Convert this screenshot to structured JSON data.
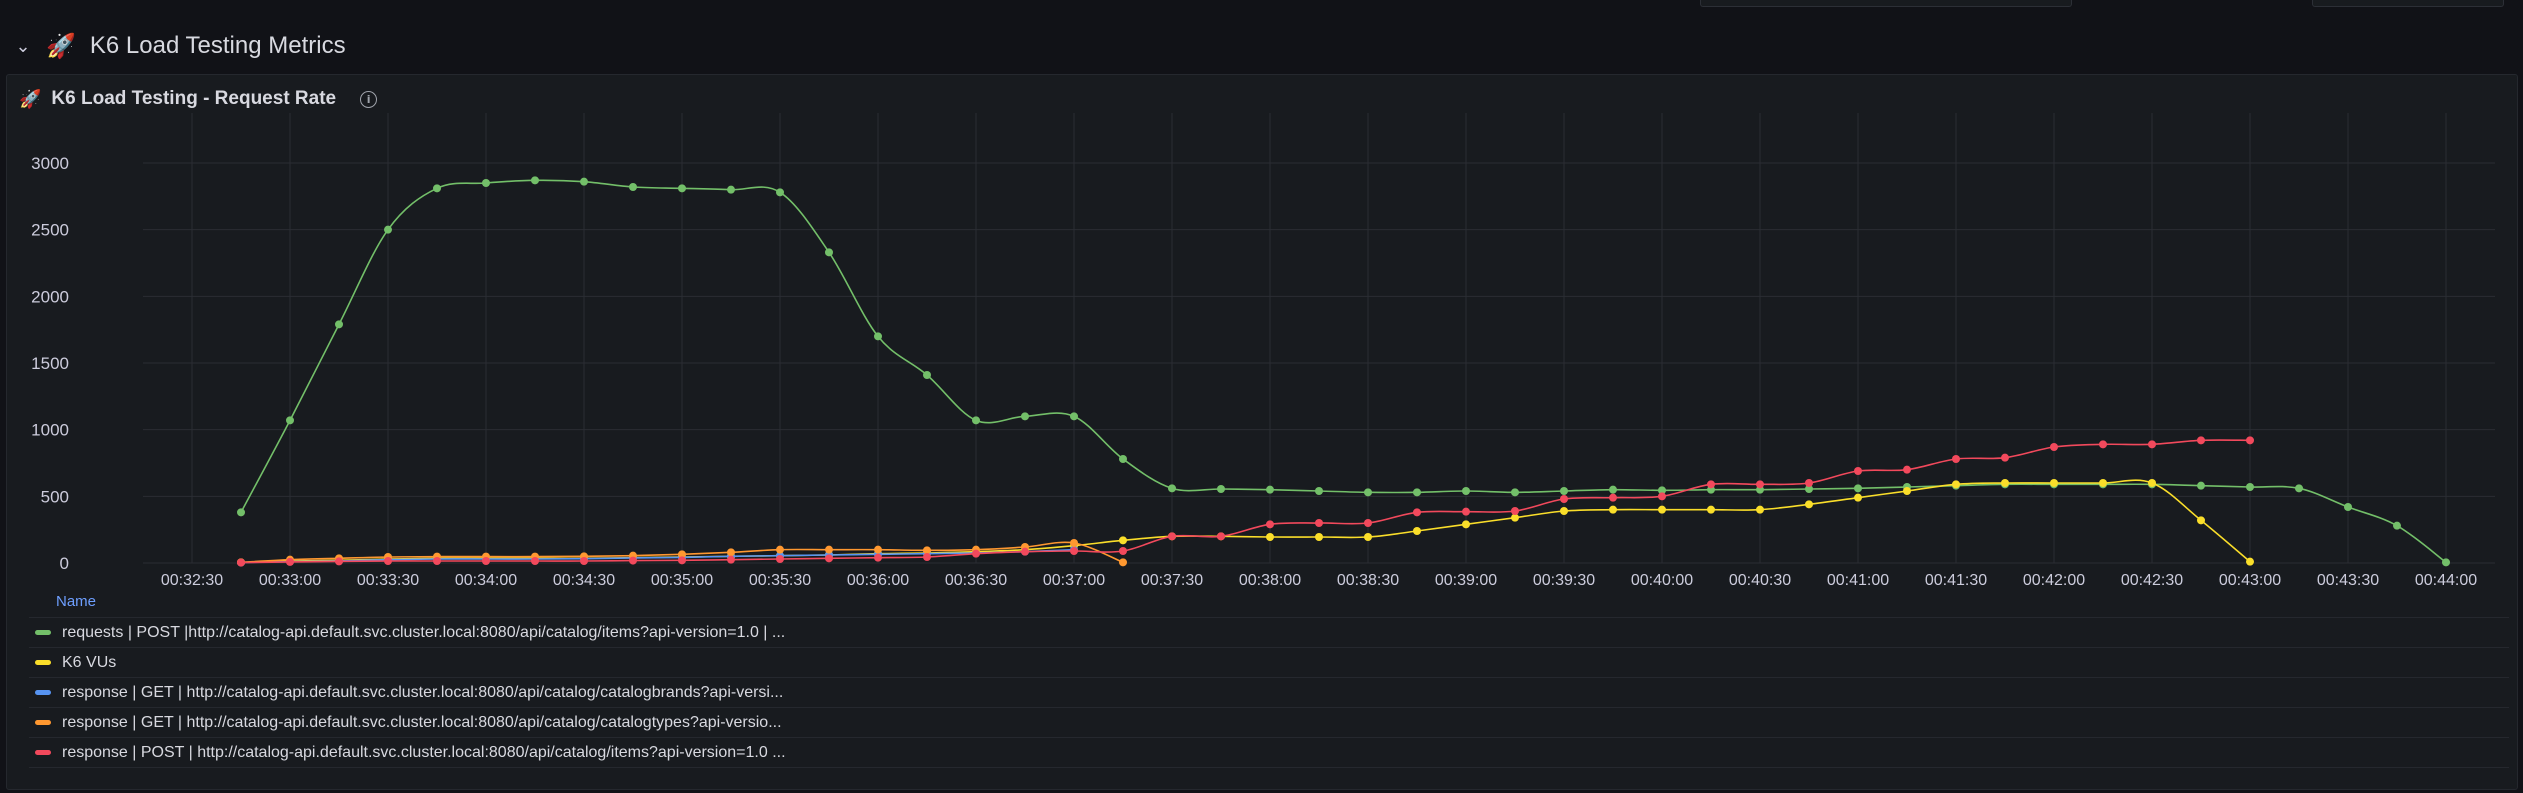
{
  "row": {
    "title": "K6 Load Testing Metrics",
    "chevron_icon": "chevron-down-icon",
    "title_icon": "rocket-icon"
  },
  "panel": {
    "title": "K6 Load Testing - Request Rate",
    "title_icon": "rocket-icon",
    "info_icon": "info-icon"
  },
  "legend": {
    "column_header": "Name",
    "items": [
      {
        "label": "requests | POST |http://catalog-api.default.svc.cluster.local:8080/api/catalog/items?api-version=1.0 | ...",
        "color": "#73bf69"
      },
      {
        "label": "K6 VUs",
        "color": "#fade2a"
      },
      {
        "label": "response | GET | http://catalog-api.default.svc.cluster.local:8080/api/catalog/catalogbrands?api-versi...",
        "color": "#5794f2"
      },
      {
        "label": "response | GET | http://catalog-api.default.svc.cluster.local:8080/api/catalog/catalogtypes?api-versio...",
        "color": "#ff9830"
      },
      {
        "label": "response | POST | http://catalog-api.default.svc.cluster.local:8080/api/catalog/items?api-version=1.0 ...",
        "color": "#f2495c"
      }
    ]
  },
  "chart_data": {
    "type": "line",
    "legend_placement": "bottom",
    "grid": true,
    "xlim": [
      "00:32:15",
      "00:44:15"
    ],
    "ylim": [
      0,
      3000
    ],
    "x_ticks": [
      "00:32:30",
      "00:33:00",
      "00:33:30",
      "00:34:00",
      "00:34:30",
      "00:35:00",
      "00:35:30",
      "00:36:00",
      "00:36:30",
      "00:37:00",
      "00:37:30",
      "00:38:00",
      "00:38:30",
      "00:39:00",
      "00:39:30",
      "00:40:00",
      "00:40:30",
      "00:41:00",
      "00:41:30",
      "00:42:00",
      "00:42:30",
      "00:43:00",
      "00:43:30",
      "00:44:00"
    ],
    "y_ticks": [
      0,
      500,
      1000,
      1500,
      2000,
      2500,
      3000
    ],
    "series": [
      {
        "name": "requests | POST |http://catalog-api.default.svc.cluster.local:8080/api/catalog/items?api-version=1.0 | ...",
        "color": "#73bf69",
        "points": [
          [
            "00:32:45",
            380
          ],
          [
            "00:33:00",
            1070
          ],
          [
            "00:33:15",
            1790
          ],
          [
            "00:33:30",
            2500
          ],
          [
            "00:33:45",
            2810
          ],
          [
            "00:34:00",
            2850
          ],
          [
            "00:34:15",
            2870
          ],
          [
            "00:34:30",
            2860
          ],
          [
            "00:34:45",
            2820
          ],
          [
            "00:35:00",
            2810
          ],
          [
            "00:35:15",
            2800
          ],
          [
            "00:35:30",
            2780
          ],
          [
            "00:35:45",
            2330
          ],
          [
            "00:36:00",
            1700
          ],
          [
            "00:36:15",
            1410
          ],
          [
            "00:36:30",
            1070
          ],
          [
            "00:36:45",
            1100
          ],
          [
            "00:37:00",
            1100
          ],
          [
            "00:37:15",
            780
          ],
          [
            "00:37:30",
            560
          ],
          [
            "00:37:45",
            555
          ],
          [
            "00:38:00",
            550
          ],
          [
            "00:38:15",
            540
          ],
          [
            "00:38:30",
            530
          ],
          [
            "00:38:45",
            530
          ],
          [
            "00:39:00",
            540
          ],
          [
            "00:39:15",
            530
          ],
          [
            "00:39:30",
            540
          ],
          [
            "00:39:45",
            550
          ],
          [
            "00:40:00",
            545
          ],
          [
            "00:40:15",
            550
          ],
          [
            "00:40:30",
            550
          ],
          [
            "00:40:45",
            555
          ],
          [
            "00:41:00",
            560
          ],
          [
            "00:41:15",
            570
          ],
          [
            "00:41:30",
            580
          ],
          [
            "00:41:45",
            590
          ],
          [
            "00:42:00",
            590
          ],
          [
            "00:42:15",
            590
          ],
          [
            "00:42:30",
            590
          ],
          [
            "00:42:45",
            580
          ],
          [
            "00:43:00",
            570
          ],
          [
            "00:43:15",
            560
          ],
          [
            "00:43:30",
            420
          ],
          [
            "00:43:45",
            280
          ],
          [
            "00:44:00",
            5
          ]
        ]
      },
      {
        "name": "K6 VUs",
        "color": "#fade2a",
        "points": [
          [
            "00:32:45",
            5
          ],
          [
            "00:33:00",
            15
          ],
          [
            "00:33:15",
            20
          ],
          [
            "00:33:30",
            30
          ],
          [
            "00:33:45",
            35
          ],
          [
            "00:34:00",
            35
          ],
          [
            "00:34:15",
            35
          ],
          [
            "00:34:30",
            35
          ],
          [
            "00:34:45",
            40
          ],
          [
            "00:35:00",
            45
          ],
          [
            "00:35:15",
            50
          ],
          [
            "00:35:30",
            55
          ],
          [
            "00:35:45",
            60
          ],
          [
            "00:36:00",
            70
          ],
          [
            "00:36:15",
            75
          ],
          [
            "00:36:30",
            85
          ],
          [
            "00:36:45",
            100
          ],
          [
            "00:37:00",
            130
          ],
          [
            "00:37:15",
            170
          ],
          [
            "00:37:30",
            200
          ],
          [
            "00:37:45",
            200
          ],
          [
            "00:38:00",
            195
          ],
          [
            "00:38:15",
            195
          ],
          [
            "00:38:30",
            195
          ],
          [
            "00:38:45",
            240
          ],
          [
            "00:39:00",
            290
          ],
          [
            "00:39:15",
            340
          ],
          [
            "00:39:30",
            390
          ],
          [
            "00:39:45",
            400
          ],
          [
            "00:40:00",
            400
          ],
          [
            "00:40:15",
            400
          ],
          [
            "00:40:30",
            400
          ],
          [
            "00:40:45",
            440
          ],
          [
            "00:41:00",
            490
          ],
          [
            "00:41:15",
            540
          ],
          [
            "00:41:30",
            590
          ],
          [
            "00:41:45",
            600
          ],
          [
            "00:42:00",
            600
          ],
          [
            "00:42:15",
            600
          ],
          [
            "00:42:30",
            600
          ],
          [
            "00:42:45",
            320
          ],
          [
            "00:43:00",
            10
          ]
        ]
      },
      {
        "name": "response | GET | http://catalog-api.default.svc.cluster.local:8080/api/catalog/catalogbrands?api-versi...",
        "color": "#5794f2",
        "points": [
          [
            "00:32:45",
            3
          ],
          [
            "00:33:00",
            10
          ],
          [
            "00:33:15",
            15
          ],
          [
            "00:33:30",
            25
          ],
          [
            "00:33:45",
            30
          ],
          [
            "00:34:00",
            30
          ],
          [
            "00:34:15",
            30
          ],
          [
            "00:34:30",
            32
          ],
          [
            "00:34:45",
            38
          ],
          [
            "00:35:00",
            42
          ],
          [
            "00:35:15",
            50
          ],
          [
            "00:35:30",
            55
          ],
          [
            "00:35:45",
            60
          ],
          [
            "00:36:00",
            65
          ],
          [
            "00:36:15",
            70
          ],
          [
            "00:36:30",
            75
          ],
          [
            "00:36:45",
            85
          ],
          [
            "00:37:00",
            100
          ]
        ]
      },
      {
        "name": "response | GET | http://catalog-api.default.svc.cluster.local:8080/api/catalog/catalogtypes?api-versio...",
        "color": "#ff9830",
        "points": [
          [
            "00:32:45",
            5
          ],
          [
            "00:33:00",
            25
          ],
          [
            "00:33:15",
            35
          ],
          [
            "00:33:30",
            45
          ],
          [
            "00:33:45",
            48
          ],
          [
            "00:34:00",
            48
          ],
          [
            "00:34:15",
            48
          ],
          [
            "00:34:30",
            50
          ],
          [
            "00:34:45",
            55
          ],
          [
            "00:35:00",
            65
          ],
          [
            "00:35:15",
            80
          ],
          [
            "00:35:30",
            100
          ],
          [
            "00:35:45",
            100
          ],
          [
            "00:36:00",
            100
          ],
          [
            "00:36:15",
            95
          ],
          [
            "00:36:30",
            100
          ],
          [
            "00:36:45",
            120
          ],
          [
            "00:37:00",
            150
          ],
          [
            "00:37:15",
            5
          ]
        ]
      },
      {
        "name": "response | POST | http://catalog-api.default.svc.cluster.local:8080/api/catalog/items?api-version=1.0 ...",
        "color": "#f2495c",
        "points": [
          [
            "00:32:45",
            3
          ],
          [
            "00:33:00",
            8
          ],
          [
            "00:33:15",
            12
          ],
          [
            "00:33:30",
            15
          ],
          [
            "00:33:45",
            15
          ],
          [
            "00:34:00",
            15
          ],
          [
            "00:34:15",
            15
          ],
          [
            "00:34:30",
            15
          ],
          [
            "00:34:45",
            18
          ],
          [
            "00:35:00",
            20
          ],
          [
            "00:35:15",
            25
          ],
          [
            "00:35:30",
            30
          ],
          [
            "00:35:45",
            35
          ],
          [
            "00:36:00",
            40
          ],
          [
            "00:36:15",
            45
          ],
          [
            "00:36:30",
            70
          ],
          [
            "00:36:45",
            85
          ],
          [
            "00:37:00",
            90
          ],
          [
            "00:37:15",
            90
          ],
          [
            "00:37:30",
            200
          ],
          [
            "00:37:45",
            200
          ],
          [
            "00:38:00",
            290
          ],
          [
            "00:38:15",
            300
          ],
          [
            "00:38:30",
            300
          ],
          [
            "00:38:45",
            380
          ],
          [
            "00:39:00",
            385
          ],
          [
            "00:39:15",
            390
          ],
          [
            "00:39:30",
            480
          ],
          [
            "00:39:45",
            490
          ],
          [
            "00:40:00",
            500
          ],
          [
            "00:40:15",
            590
          ],
          [
            "00:40:30",
            590
          ],
          [
            "00:40:45",
            600
          ],
          [
            "00:41:00",
            690
          ],
          [
            "00:41:15",
            700
          ],
          [
            "00:41:30",
            780
          ],
          [
            "00:41:45",
            790
          ],
          [
            "00:42:00",
            870
          ],
          [
            "00:42:15",
            890
          ],
          [
            "00:42:30",
            890
          ],
          [
            "00:42:45",
            920
          ],
          [
            "00:43:00",
            920
          ]
        ]
      }
    ]
  }
}
